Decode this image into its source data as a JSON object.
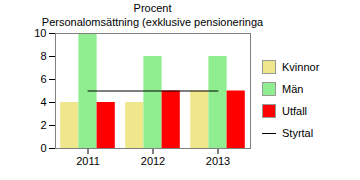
{
  "chart_data": {
    "type": "bar",
    "title": "Personalomsättning (exklusive pensioneringa",
    "ylabel": "Procent",
    "categories": [
      "2011",
      "2012",
      "2013"
    ],
    "series": [
      {
        "name": "Kvinnor",
        "color": "#f0e68c",
        "values": [
          4,
          4,
          5
        ]
      },
      {
        "name": "Män",
        "color": "#90ee90",
        "values": [
          10,
          8,
          8
        ]
      },
      {
        "name": "Utfall",
        "color": "#ff0000",
        "values": [
          4,
          5,
          5
        ]
      },
      {
        "name": "Styrtal",
        "type": "line",
        "color": "#000000",
        "values": [
          5,
          5,
          5
        ]
      }
    ],
    "ylim": [
      0,
      10
    ],
    "yticks": [
      0,
      2,
      4,
      6,
      8,
      10
    ],
    "grid": false,
    "legend": "right"
  }
}
